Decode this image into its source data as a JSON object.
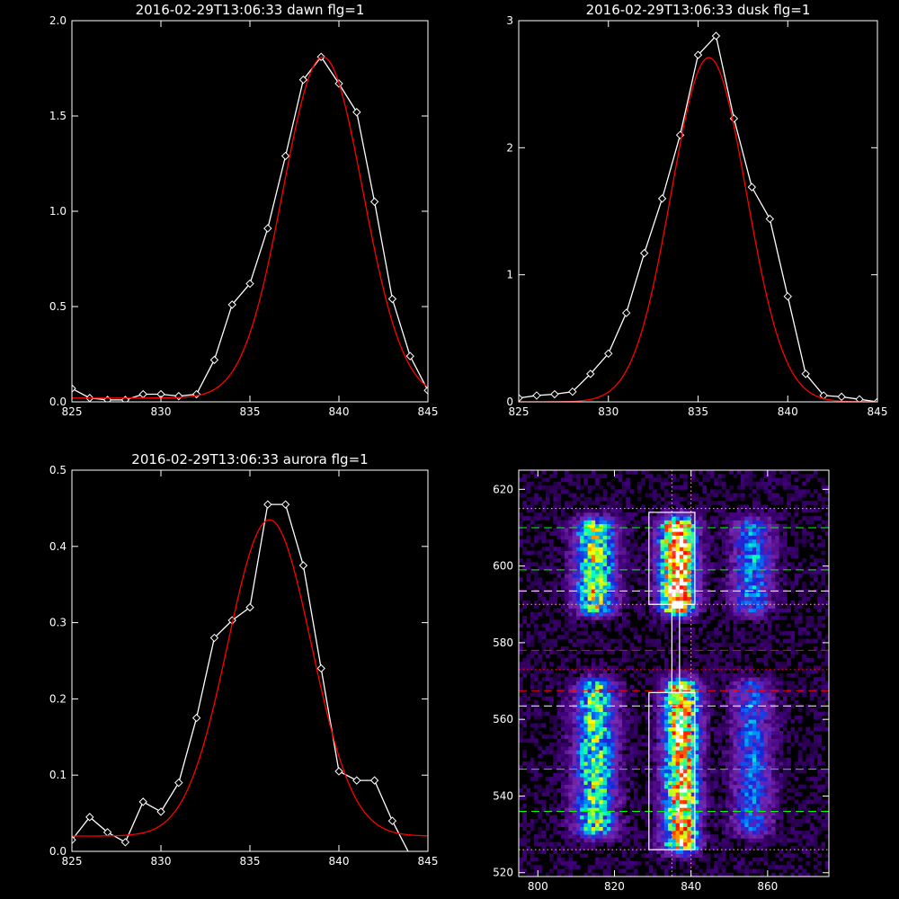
{
  "chart_data": [
    {
      "type": "line",
      "title": "2016-02-29T13:06:33 dawn flg=1",
      "xlabel": "",
      "ylabel": "",
      "xlim": [
        825,
        845
      ],
      "ylim": [
        0,
        2.0
      ],
      "xticks": [
        825,
        830,
        835,
        840,
        845
      ],
      "xtick_labels": [
        "825",
        "830",
        "835",
        "840",
        "845"
      ],
      "yticks": [
        0,
        0.5,
        1.0,
        1.5,
        2.0
      ],
      "ytick_labels": [
        "0.0",
        "0.5",
        "1.0",
        "1.5",
        "2.0"
      ],
      "grid": false,
      "series": [
        {
          "color": "#ffffff",
          "marker": "diamond",
          "x": [
            825,
            826,
            827,
            828,
            829,
            830,
            831,
            832,
            833,
            834,
            835,
            836,
            837,
            838,
            839,
            840,
            841,
            842,
            843,
            844,
            845
          ],
          "y": [
            0.07,
            0.02,
            0.01,
            0.01,
            0.04,
            0.04,
            0.03,
            0.04,
            0.22,
            0.51,
            0.62,
            0.91,
            1.29,
            1.69,
            1.81,
            1.67,
            1.52,
            1.05,
            0.54,
            0.24,
            0.06
          ]
        },
        {
          "color": "#ff0000",
          "marker": "none",
          "fit": {
            "amplitude": 1.79,
            "center": 839.1,
            "sigma": 2.25,
            "baseline": 0.02
          }
        }
      ]
    },
    {
      "type": "line",
      "title": "2016-02-29T13:06:33 dusk flg=1",
      "xlabel": "",
      "ylabel": "",
      "xlim": [
        825,
        845
      ],
      "ylim": [
        0,
        3
      ],
      "xticks": [
        825,
        830,
        835,
        840,
        845
      ],
      "xtick_labels": [
        "825",
        "830",
        "835",
        "840",
        "845"
      ],
      "yticks": [
        0,
        1,
        2,
        3
      ],
      "ytick_labels": [
        "0",
        "1",
        "2",
        "3"
      ],
      "grid": false,
      "series": [
        {
          "color": "#ffffff",
          "marker": "diamond",
          "x": [
            825,
            826,
            827,
            828,
            829,
            830,
            831,
            832,
            833,
            834,
            835,
            836,
            837,
            838,
            839,
            840,
            841,
            842,
            843,
            844,
            845
          ],
          "y": [
            0.03,
            0.05,
            0.06,
            0.08,
            0.22,
            0.38,
            0.7,
            1.17,
            1.6,
            2.1,
            2.73,
            2.88,
            2.23,
            1.69,
            1.44,
            0.83,
            0.22,
            0.05,
            0.04,
            0.02,
            0.0
          ]
        },
        {
          "color": "#ff0000",
          "marker": "none",
          "fit": {
            "amplitude": 2.71,
            "center": 835.6,
            "sigma": 2.1,
            "baseline": 0.0
          }
        }
      ]
    },
    {
      "type": "line",
      "title": "2016-02-29T13:06:33 aurora flg=1",
      "xlabel": "",
      "ylabel": "",
      "xlim": [
        825,
        845
      ],
      "ylim": [
        0,
        0.5
      ],
      "xticks": [
        825,
        830,
        835,
        840,
        845
      ],
      "xtick_labels": [
        "825",
        "830",
        "835",
        "840",
        "845"
      ],
      "yticks": [
        0,
        0.1,
        0.2,
        0.3,
        0.4,
        0.5
      ],
      "ytick_labels": [
        "0.0",
        "0.1",
        "0.2",
        "0.3",
        "0.4",
        "0.5"
      ],
      "grid": false,
      "series": [
        {
          "color": "#ffffff",
          "marker": "diamond",
          "x": [
            825,
            826,
            827,
            828,
            829,
            830,
            831,
            832,
            833,
            834,
            835,
            836,
            837,
            838,
            839,
            840,
            841,
            842,
            843,
            844,
            845
          ],
          "y": [
            0.015,
            0.045,
            0.025,
            0.012,
            0.065,
            0.052,
            0.09,
            0.175,
            0.28,
            0.303,
            0.32,
            0.455,
            0.455,
            0.375,
            0.24,
            0.105,
            0.093,
            0.093,
            0.04,
            -0.005,
            -0.01
          ]
        },
        {
          "color": "#ff0000",
          "marker": "none",
          "fit": {
            "amplitude": 0.415,
            "center": 836.1,
            "sigma": 2.35,
            "baseline": 0.02
          }
        }
      ]
    },
    {
      "type": "heatmap",
      "title": "",
      "xlabel": "",
      "ylabel": "",
      "xlim": [
        795,
        876
      ],
      "ylim": [
        519,
        625
      ],
      "xticks": [
        800,
        820,
        840,
        860
      ],
      "xtick_labels": [
        "800",
        "820",
        "840",
        "860"
      ],
      "yticks": [
        520,
        540,
        560,
        580,
        600,
        620
      ],
      "ytick_labels": [
        "520",
        "540",
        "560",
        "580",
        "600",
        "620"
      ],
      "grid": false,
      "colormap": [
        "#000000",
        "#40007a",
        "#7a2ab0",
        "#1a22d8",
        "#0090ff",
        "#00ffc0",
        "#80ff40",
        "#ffff00",
        "#ff6000",
        "#ff0000",
        "#ffffff"
      ],
      "bands": [
        {
          "x_center": 815,
          "x_width": 3.5,
          "y_range": [
            590,
            610
          ],
          "peak": 0.6
        },
        {
          "x_center": 836.5,
          "x_width": 3.0,
          "y_range": [
            590,
            610
          ],
          "peak": 1.0
        },
        {
          "x_center": 856,
          "x_width": 3.5,
          "y_range": [
            590,
            610
          ],
          "peak": 0.35
        },
        {
          "x_center": 815,
          "x_width": 3.5,
          "y_range": [
            532,
            568
          ],
          "peak": 0.55
        },
        {
          "x_center": 837.5,
          "x_width": 3.0,
          "y_range": [
            528,
            568
          ],
          "peak": 0.85
        },
        {
          "x_center": 856,
          "x_width": 3.5,
          "y_range": [
            532,
            568
          ],
          "peak": 0.3
        }
      ],
      "boxes": [
        {
          "x": [
            829,
            841
          ],
          "y": [
            590,
            614
          ],
          "color": "#ffffff"
        },
        {
          "x": [
            829,
            841
          ],
          "y": [
            526,
            567
          ],
          "color": "#ffffff"
        }
      ],
      "connector": {
        "x": [
          835,
          837
        ],
        "y": [
          567,
          590
        ],
        "color": "#ffffff"
      },
      "hlines": [
        {
          "y": 615,
          "color": "#ffb0b0",
          "style": "dotted"
        },
        {
          "y": 610,
          "color": "#00ff00",
          "style": "dashed"
        },
        {
          "y": 599,
          "color": "#00ff00",
          "style": "dashed"
        },
        {
          "y": 593.5,
          "color": "#ffffff",
          "style": "dashed"
        },
        {
          "y": 590,
          "color": "#ffb0b0",
          "style": "dotted"
        },
        {
          "y": 578,
          "color": "#ff0000",
          "style": "dashed"
        },
        {
          "y": 573,
          "color": "#ff0000",
          "style": "dotted"
        },
        {
          "y": 567.5,
          "color": "#ff0000",
          "style": "dashed"
        },
        {
          "y": 563.5,
          "color": "#ffffff",
          "style": "dashed"
        },
        {
          "y": 547,
          "color": "#00ff00",
          "style": "dashed"
        },
        {
          "y": 536,
          "color": "#00ff00",
          "style": "dashed"
        },
        {
          "y": 526,
          "color": "#ffb0b0",
          "style": "dotted"
        }
      ],
      "vlines": [
        {
          "x": 835,
          "color": "#ffb0b0",
          "style": "dotted"
        },
        {
          "x": 840,
          "color": "#ffb0b0",
          "style": "dotted"
        }
      ]
    }
  ]
}
